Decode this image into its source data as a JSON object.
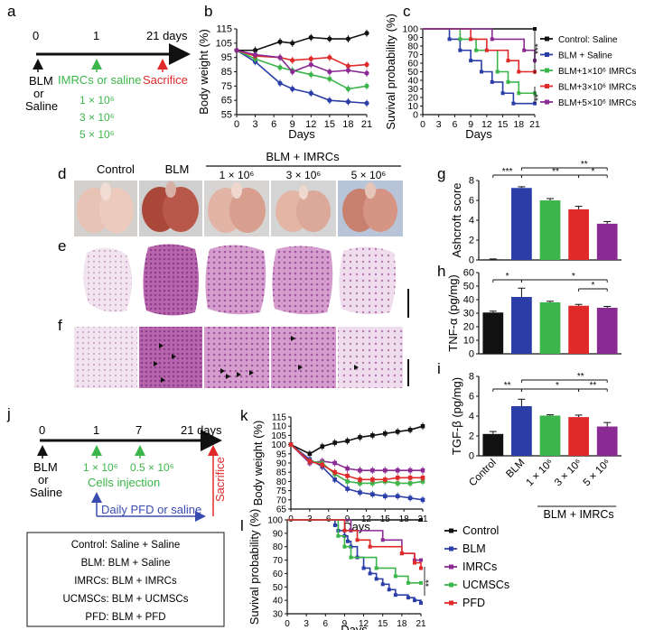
{
  "panel_labels": {
    "a": "a",
    "b": "b",
    "c": "c",
    "d": "d",
    "e": "e",
    "f": "f",
    "g": "g",
    "h": "h",
    "i": "i",
    "j": "j",
    "k": "k",
    "l": "l"
  },
  "timeline_a": {
    "ticks": [
      "0",
      "1",
      "21 days"
    ],
    "bottom_left": [
      "BLM",
      "or",
      "Saline"
    ],
    "mid_label": "IMRCs or saline",
    "right_label": "Sacrifice",
    "doses": [
      "1 × 10⁶",
      "3 × 10⁶",
      "5 × 10⁶"
    ]
  },
  "timeline_j": {
    "ticks": [
      "0",
      "1",
      "7",
      "21 days"
    ],
    "bottom_left": [
      "BLM",
      "or",
      "Saline"
    ],
    "doses": [
      "1 × 10⁶",
      "0.5 × 10⁶"
    ],
    "cells_label": "Cells injection",
    "daily_label": "Daily PFD or saline",
    "right_label": "Sacrifice"
  },
  "group_box": [
    "Control: Saline + Saline",
    "BLM: BLM + Saline",
    "IMRCs: BLM + IMRCs",
    "UCMSCs: BLM + UCMSCs",
    "PFD: BLM + PFD"
  ],
  "photo_headers": {
    "control": "Control",
    "blm": "BLM",
    "group": "BLM + IMRCs",
    "d1": "1 × 10⁶",
    "d3": "3 × 10⁶",
    "d5": "5 × 10⁶"
  },
  "colors": {
    "black": "#111111",
    "blue": "#2b3ea8",
    "green": "#3cb54a",
    "red": "#e02a2a",
    "purple": "#8a2b93"
  },
  "chart_data": [
    {
      "id": "b",
      "type": "line",
      "title": "",
      "xlabel": "Days",
      "ylabel": "Body weight (%)",
      "xlim": [
        0,
        21
      ],
      "ylim": [
        55,
        115
      ],
      "x": [
        0,
        3,
        7,
        9,
        12,
        15,
        18,
        21
      ],
      "xticks": [
        "0",
        "3",
        "6",
        "9",
        "12",
        "15",
        "18",
        "21"
      ],
      "yticks": [
        "55",
        "65",
        "75",
        "85",
        "95",
        "105",
        "115"
      ],
      "series": [
        {
          "name": "Control: Saline",
          "color": "black",
          "values": [
            100,
            100,
            106,
            105,
            109,
            108,
            108,
            112
          ]
        },
        {
          "name": "BLM + Saline",
          "color": "blue",
          "values": [
            100,
            92,
            77,
            73,
            70,
            65,
            64,
            63
          ]
        },
        {
          "name": "BLM+1×10⁶ IMRCs",
          "color": "green",
          "values": [
            100,
            94,
            88,
            86,
            83,
            80,
            73,
            75
          ]
        },
        {
          "name": "BLM+3×10⁶ IMRCs",
          "color": "red",
          "values": [
            100,
            96,
            95,
            93,
            94,
            95,
            89,
            90
          ]
        },
        {
          "name": "BLM+5×10⁶ IMRCs",
          "color": "purple",
          "values": [
            100,
            97,
            95,
            85,
            90,
            85,
            86,
            84
          ]
        }
      ]
    },
    {
      "id": "c",
      "type": "line",
      "title": "",
      "xlabel": "Days",
      "ylabel": "Suvival probability (%)",
      "xlim": [
        0,
        21
      ],
      "ylim": [
        0,
        100
      ],
      "xticks": [
        "0",
        "3",
        "6",
        "9",
        "12",
        "15",
        "18",
        "21"
      ],
      "yticks": [
        "0",
        "10",
        "20",
        "30",
        "40",
        "50",
        "60",
        "70",
        "80",
        "90",
        "100"
      ],
      "legend": [
        "Control: Saline",
        "BLM + Saline",
        "BLM+1×10⁶ IMRCs",
        "BLM+3×10⁶ IMRCs",
        "BLM+5×10⁶ IMRCs"
      ],
      "significance": [
        "***",
        "**"
      ],
      "series": [
        {
          "name": "Control: Saline",
          "color": "black",
          "steps": [
            [
              0,
              100
            ],
            [
              21,
              100
            ]
          ]
        },
        {
          "name": "BLM + Saline",
          "color": "blue",
          "steps": [
            [
              0,
              100
            ],
            [
              5,
              88
            ],
            [
              7,
              75
            ],
            [
              9,
              63
            ],
            [
              11,
              50
            ],
            [
              13,
              38
            ],
            [
              15,
              25
            ],
            [
              17,
              13
            ],
            [
              21,
              13
            ]
          ]
        },
        {
          "name": "BLM+1×10⁶ IMRCs",
          "color": "green",
          "steps": [
            [
              0,
              100
            ],
            [
              7,
              88
            ],
            [
              10,
              75
            ],
            [
              14,
              50
            ],
            [
              16,
              38
            ],
            [
              18,
              25
            ],
            [
              21,
              25
            ]
          ]
        },
        {
          "name": "BLM+3×10⁶ IMRCs",
          "color": "red",
          "steps": [
            [
              0,
              100
            ],
            [
              9,
              88
            ],
            [
              12,
              75
            ],
            [
              16,
              63
            ],
            [
              18,
              50
            ],
            [
              21,
              50
            ]
          ]
        },
        {
          "name": "BLM+5×10⁶ IMRCs",
          "color": "purple",
          "steps": [
            [
              0,
              100
            ],
            [
              13,
              88
            ],
            [
              19,
              75
            ],
            [
              21,
              63
            ]
          ]
        }
      ]
    },
    {
      "id": "g",
      "type": "bar",
      "ylabel": "Ashcroft score",
      "ylim": [
        0,
        8
      ],
      "yticks": [
        "0",
        "2",
        "4",
        "6",
        "8"
      ],
      "categories": [
        "Control",
        "BLM",
        "1 × 10⁶",
        "3 × 10⁶",
        "5 × 10⁶"
      ],
      "values": [
        0.05,
        7.25,
        6.0,
        5.1,
        3.65
      ],
      "errors": [
        0.05,
        0.12,
        0.18,
        0.3,
        0.22
      ],
      "colors": [
        "black",
        "blue",
        "green",
        "red",
        "purple"
      ],
      "significance": [
        "***",
        "**",
        "**",
        "*"
      ]
    },
    {
      "id": "h",
      "type": "bar",
      "ylabel": "TNF-α (pg/mg)",
      "ylim": [
        0,
        60
      ],
      "yticks": [
        "0",
        "10",
        "20",
        "30",
        "40",
        "50",
        "60"
      ],
      "categories": [
        "Control",
        "BLM",
        "1 × 10⁶",
        "3 × 10⁶",
        "5 × 10⁶"
      ],
      "values": [
        30.5,
        42,
        38,
        35.5,
        34
      ],
      "errors": [
        1,
        6.5,
        0.8,
        1,
        1
      ],
      "colors": [
        "black",
        "blue",
        "green",
        "red",
        "purple"
      ],
      "significance": [
        "*",
        "*",
        "*"
      ]
    },
    {
      "id": "i",
      "type": "bar",
      "ylabel": "TGF-β (pg/mg)",
      "ylim": [
        0,
        8
      ],
      "yticks": [
        "0",
        "2",
        "4",
        "6",
        "8"
      ],
      "categories": [
        "Control",
        "BLM",
        "1 × 10⁶",
        "3 × 10⁶",
        "5 × 10⁶"
      ],
      "values": [
        2.2,
        5.0,
        4.05,
        3.9,
        2.95
      ],
      "errors": [
        0.25,
        0.7,
        0.08,
        0.2,
        0.4
      ],
      "colors": [
        "black",
        "blue",
        "green",
        "red",
        "purple"
      ],
      "significance": [
        "**",
        "**",
        "*",
        "**"
      ],
      "group_label": "BLM + IMRCs"
    },
    {
      "id": "k",
      "type": "line",
      "xlabel": "Days",
      "ylabel": "Body weight (%)",
      "xlim": [
        0,
        21
      ],
      "ylim": [
        65,
        115
      ],
      "x": [
        0,
        3,
        5,
        7,
        9,
        11,
        13,
        15,
        17,
        19,
        21
      ],
      "xticks": [
        "0",
        "3",
        "6",
        "9",
        "12",
        "15",
        "18",
        "21"
      ],
      "yticks": [
        "65",
        "70",
        "75",
        "80",
        "85",
        "90",
        "95",
        "100",
        "105",
        "110",
        "115"
      ],
      "series": [
        {
          "name": "Control",
          "color": "black",
          "values": [
            100,
            95,
            99,
            101,
            102,
            104,
            105,
            106,
            107,
            108,
            110
          ]
        },
        {
          "name": "BLM",
          "color": "blue",
          "values": [
            100,
            92,
            88,
            81,
            76,
            74,
            73,
            72,
            72,
            71,
            70
          ]
        },
        {
          "name": "IMRCs",
          "color": "purple",
          "values": [
            100,
            90,
            91,
            90,
            87,
            86,
            86,
            86,
            86,
            86,
            86
          ]
        },
        {
          "name": "UCMSCs",
          "color": "green",
          "values": [
            100,
            91,
            90,
            84,
            80,
            79,
            79,
            80,
            79,
            79,
            80
          ]
        },
        {
          "name": "PFD",
          "color": "red",
          "values": [
            100,
            91,
            89,
            85,
            83,
            81,
            81,
            81,
            82,
            82,
            82
          ]
        }
      ]
    },
    {
      "id": "l",
      "type": "line",
      "xlabel": "Days",
      "ylabel": "Suvival probability (%)",
      "xlim": [
        0,
        21
      ],
      "ylim": [
        30,
        100
      ],
      "xticks": [
        "0",
        "3",
        "6",
        "9",
        "12",
        "15",
        "18",
        "21"
      ],
      "yticks": [
        "30",
        "40",
        "50",
        "60",
        "70",
        "80",
        "90",
        "100"
      ],
      "legend": [
        "Control",
        "BLM",
        "IMRCs",
        "UCMSCs",
        "PFD"
      ],
      "significance": [
        "**"
      ],
      "series": [
        {
          "name": "Control",
          "color": "black",
          "steps": [
            [
              0,
              100
            ],
            [
              21,
              100
            ]
          ]
        },
        {
          "name": "BLM",
          "color": "blue",
          "steps": [
            [
              0,
              100
            ],
            [
              7.5,
              96
            ],
            [
              8,
              92
            ],
            [
              9,
              88
            ],
            [
              9.5,
              84
            ],
            [
              10,
              80
            ],
            [
              11,
              72
            ],
            [
              12,
              64
            ],
            [
              13,
              60
            ],
            [
              14,
              56
            ],
            [
              15,
              52
            ],
            [
              16,
              48
            ],
            [
              17,
              44
            ],
            [
              19,
              42
            ],
            [
              20,
              40
            ],
            [
              21,
              38
            ]
          ]
        },
        {
          "name": "IMRCs",
          "color": "purple",
          "steps": [
            [
              0,
              100
            ],
            [
              10,
              92
            ],
            [
              15,
              85
            ],
            [
              18,
              75
            ],
            [
              20,
              70
            ],
            [
              21,
              70
            ]
          ]
        },
        {
          "name": "UCMSCs",
          "color": "green",
          "steps": [
            [
              0,
              100
            ],
            [
              8,
              88
            ],
            [
              9,
              80
            ],
            [
              10,
              72
            ],
            [
              14,
              64
            ],
            [
              17,
              58
            ],
            [
              19,
              53
            ],
            [
              21,
              53
            ]
          ]
        },
        {
          "name": "PFD",
          "color": "red",
          "steps": [
            [
              0,
              100
            ],
            [
              9,
              92
            ],
            [
              11,
              85
            ],
            [
              13,
              80
            ],
            [
              18,
              75
            ],
            [
              20,
              68
            ],
            [
              21,
              64
            ]
          ]
        }
      ]
    }
  ]
}
